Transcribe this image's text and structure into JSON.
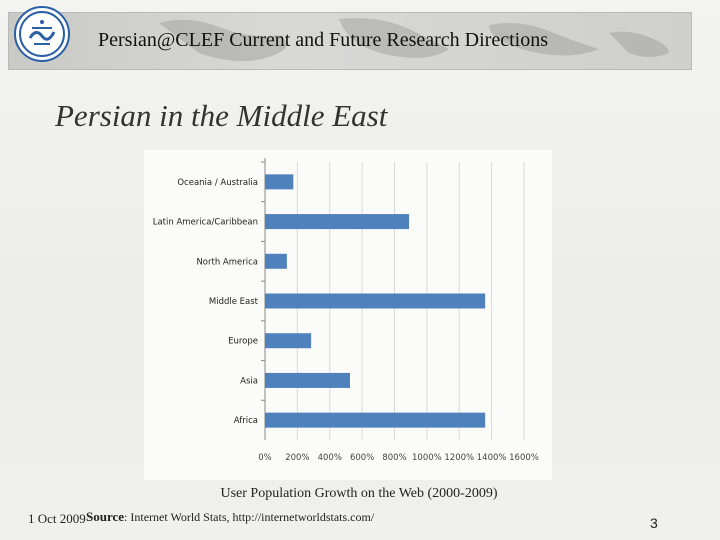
{
  "header": {
    "title": "Persian@CLEF Current and Future Research Directions",
    "logo_icon": "university-of-tehran-logo"
  },
  "slide": {
    "title": "Persian in the Middle East",
    "caption": "User Population Growth on the Web (2000-2009)",
    "date": "1 Oct 2009",
    "source_label": "Source",
    "source_text": ": Internet World Stats, http://internetworldstats.com/",
    "page_number": "3"
  },
  "colors": {
    "bar": "#4f81bd",
    "grid": "#d9d9d9"
  },
  "chart_data": {
    "type": "bar",
    "orientation": "horizontal",
    "categories": [
      "Oceania / Australia",
      "Latin America/Caribbean",
      "North America",
      "Middle East",
      "Europe",
      "Asia",
      "Africa"
    ],
    "values": [
      175,
      890,
      135,
      1360,
      285,
      525,
      1360
    ],
    "tick_labels": [
      "0%",
      "200%",
      "400%",
      "600%",
      "800%",
      "1000%",
      "1200%",
      "1400%",
      "1600%"
    ],
    "xlim": [
      0,
      1600
    ],
    "grid": true
  }
}
